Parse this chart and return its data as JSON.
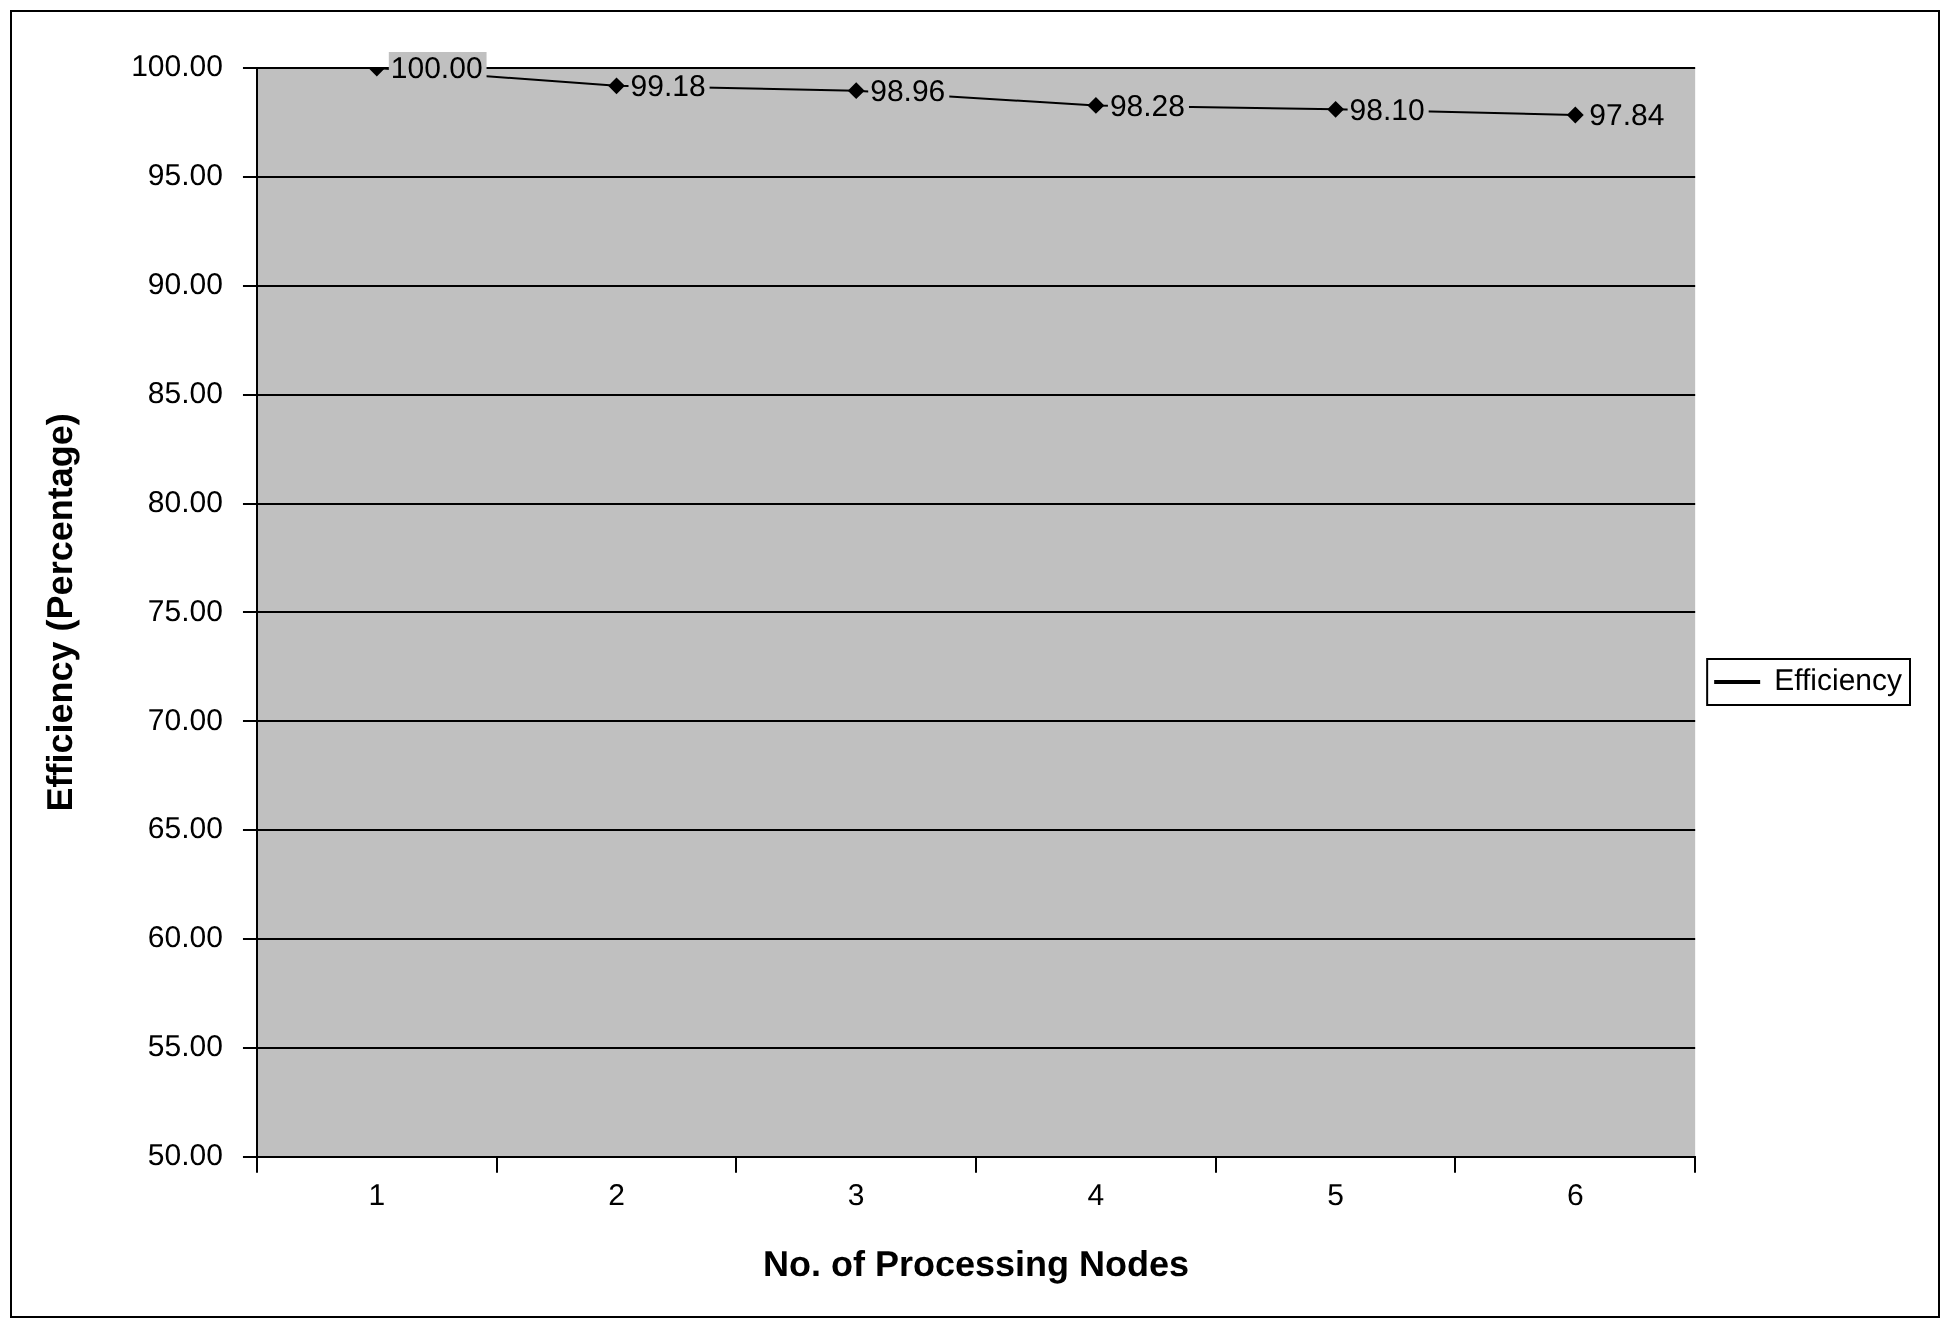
{
  "chart_data": {
    "type": "line",
    "xlabel": "No. of Processing Nodes",
    "ylabel": "Efficiency (Percentage)",
    "categories": [
      "1",
      "2",
      "3",
      "4",
      "5",
      "6"
    ],
    "series": [
      {
        "name": "Efficiency",
        "color": "#000000",
        "values": [
          100,
          99.18,
          98.96,
          98.28,
          98.1,
          97.84
        ],
        "value_labels": [
          "100.00",
          "99.18",
          "98.96",
          "98.28",
          "98.10",
          "97.84"
        ]
      }
    ],
    "ylim": [
      50,
      100
    ],
    "yticks": [
      {
        "value": 50,
        "label": "50.00"
      },
      {
        "value": 55,
        "label": "55.00"
      },
      {
        "value": 60,
        "label": "60.00"
      },
      {
        "value": 65,
        "label": "65.00"
      },
      {
        "value": 70,
        "label": "70.00"
      },
      {
        "value": 75,
        "label": "75.00"
      },
      {
        "value": 80,
        "label": "80.00"
      },
      {
        "value": 85,
        "label": "85.00"
      },
      {
        "value": 90,
        "label": "90.00"
      },
      {
        "value": 95,
        "label": "95.00"
      },
      {
        "value": 100,
        "label": "100.00"
      }
    ],
    "grid": "y",
    "legend": "right",
    "marker": "diamond",
    "line_style": "solid"
  }
}
